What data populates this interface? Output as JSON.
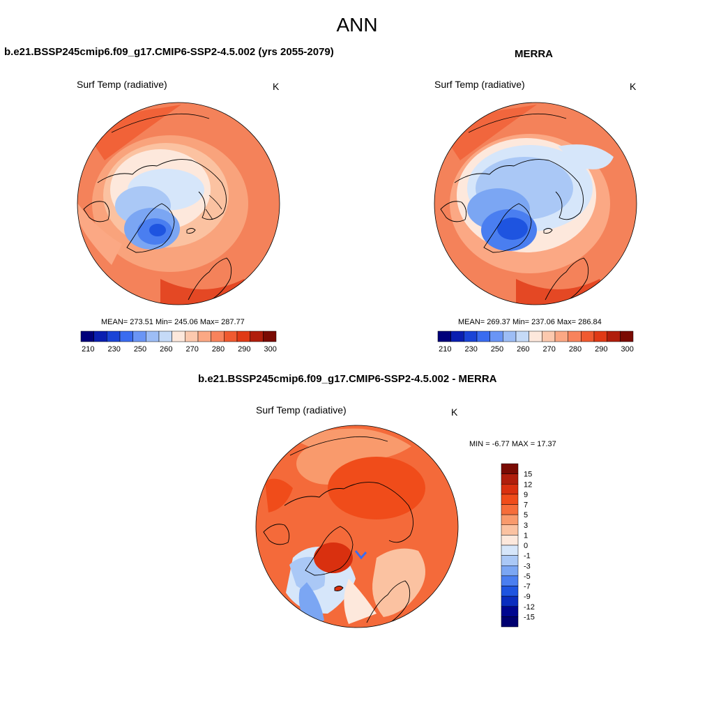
{
  "main_title": "ANN",
  "panels": [
    {
      "title": "b.e21.BSSP245cmip6.f09_g17.CMIP6-SSP2-4.5.002 (yrs 2055-2079)",
      "variable": "Surf Temp (radiative)",
      "units": "K",
      "stats": "MEAN= 273.51  Min= 245.06  Max= 287.77"
    },
    {
      "title": "MERRA",
      "variable": "Surf Temp (radiative)",
      "units": "K",
      "stats": "MEAN= 269.37  Min= 237.06  Max= 286.84"
    },
    {
      "title": "b.e21.BSSP245cmip6.f09_g17.CMIP6-SSP2-4.5.002 - MERRA",
      "variable": "Surf Temp (radiative)",
      "units": "K",
      "stats": "MIN =  -6.77 MAX =  17.37"
    }
  ],
  "abs_colorbar": {
    "colors": [
      "#00007a",
      "#0a1fb0",
      "#1a44d6",
      "#3a6cf0",
      "#6a95f5",
      "#9dbdf5",
      "#c5daf7",
      "#fde8dc",
      "#fcc9ae",
      "#fba884",
      "#f8835c",
      "#f05a30",
      "#e03a16",
      "#b01e0c",
      "#7a0b03"
    ],
    "labels": [
      "210",
      "230",
      "250",
      "260",
      "270",
      "280",
      "290",
      "300"
    ]
  },
  "diff_colorbar": {
    "colors": [
      "#7a0b03",
      "#b01e0c",
      "#d9300f",
      "#f04c1a",
      "#f66d3a",
      "#f99a6c",
      "#fbc2a1",
      "#fde8dc",
      "#d6e6fa",
      "#aac8f6",
      "#7ba6f3",
      "#4a7ef0",
      "#1e54e0",
      "#0a2dbf",
      "#00068f",
      "#000070"
    ],
    "labels": [
      "15",
      "12",
      "9",
      "7",
      "5",
      "3",
      "1",
      "0",
      "-1",
      "-3",
      "-5",
      "-7",
      "-9",
      "-12",
      "-15"
    ]
  },
  "colors": {
    "diff_background": "#f46a3a",
    "model_outer": "#f4825a",
    "cold": "#3a6cf0"
  }
}
